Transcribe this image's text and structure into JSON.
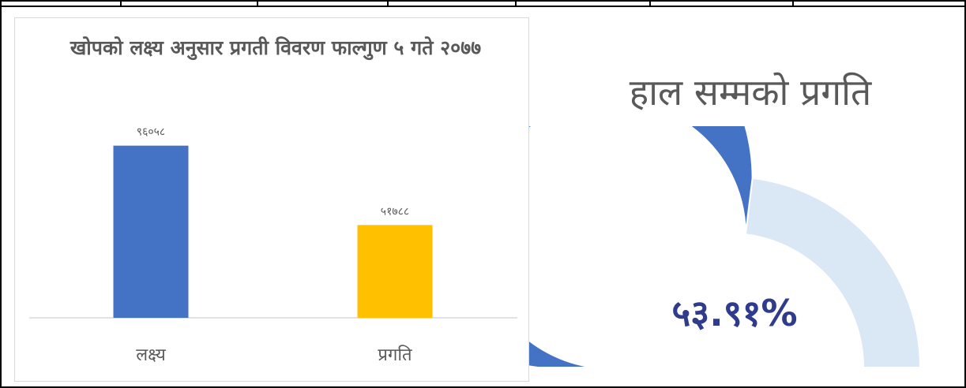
{
  "chart_data": [
    {
      "type": "bar",
      "title": "खोपको लक्ष्य अनुसार प्रगती विवरण फाल्गुण ५ गते २०७७",
      "categories": [
        "लक्ष्य",
        "प्रगति"
      ],
      "values": [
        96058,
        51788
      ],
      "value_labels": [
        "९६०५८",
        "५१७८८"
      ],
      "colors": [
        "#4472c4",
        "#ffc000"
      ],
      "ylim": [
        0,
        110000
      ],
      "grid": false,
      "legend": "none"
    },
    {
      "type": "gauge",
      "title": "हाल सम्मको प्रगति",
      "value_percent": 53.91,
      "value_label": "५३.९१%",
      "colors": [
        "#4472c4",
        "#dae7f4"
      ]
    }
  ]
}
